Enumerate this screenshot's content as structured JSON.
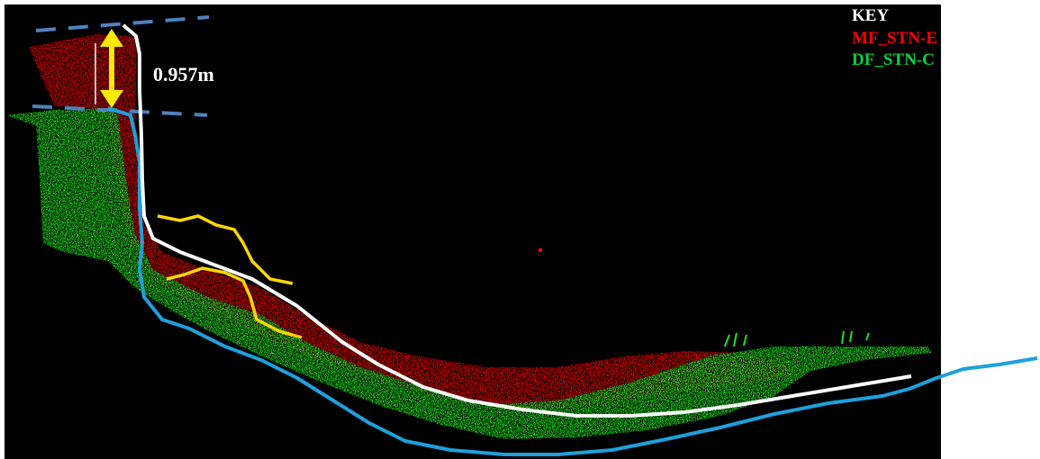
{
  "measurement": {
    "label": "0.957m",
    "label_color": "#ffffff",
    "arrow_color": "#ffeb00",
    "reference_line_color": "#4f81bd"
  },
  "key": {
    "title": "KEY",
    "title_color": "#ffffff",
    "items": [
      {
        "label": "MF_STN-E",
        "color": "#ff0000"
      },
      {
        "label": "DF_STN-C",
        "color": "#00d63a"
      }
    ]
  },
  "colors": {
    "background": "#000000",
    "page": "#ffffff",
    "red_cloud": "#e60000",
    "green_cloud": "#19e619",
    "white_profile": "#ffffff",
    "blue_profile": "#1ea0dc",
    "yellow_outline": "#ffd700"
  }
}
